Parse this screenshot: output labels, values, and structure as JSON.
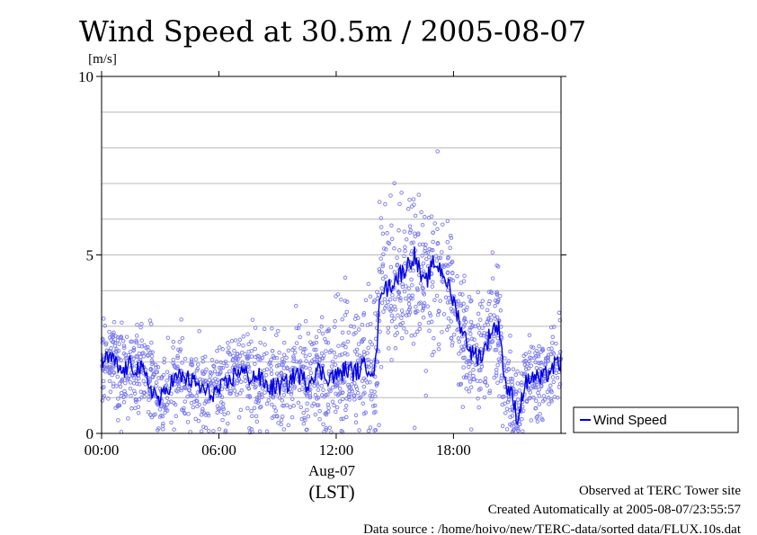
{
  "chart_data": {
    "type": "scatter",
    "title": "Wind Speed at 30.5m / 2005-08-07",
    "ylabel": "[m/s]",
    "xlabel": "(LST)",
    "date_label": "Aug-07",
    "x_ticks": [
      "00:00",
      "06:00",
      "12:00",
      "18:00"
    ],
    "x_tick_hours": [
      0,
      6,
      12,
      18
    ],
    "xlim_hours": [
      0,
      23.5
    ],
    "y_ticks": [
      0,
      5,
      10
    ],
    "y_tick_labels": [
      "0",
      "5",
      "10"
    ],
    "ylim": [
      0,
      10
    ],
    "grid": "horizontal every 1 m/s",
    "legend_position": "right",
    "series": [
      {
        "name": "Wind Speed",
        "kind": "line-with-scatter",
        "color": "#0000e0",
        "scatter_color": "#7a7aee",
        "mean_profile": [
          [
            0.0,
            2.0
          ],
          [
            0.5,
            2.1
          ],
          [
            1.0,
            1.7
          ],
          [
            1.5,
            1.9
          ],
          [
            2.0,
            1.8
          ],
          [
            2.5,
            1.3
          ],
          [
            3.0,
            0.9
          ],
          [
            3.5,
            1.4
          ],
          [
            4.0,
            1.6
          ],
          [
            4.5,
            1.5
          ],
          [
            5.0,
            1.3
          ],
          [
            5.5,
            1.1
          ],
          [
            6.0,
            1.2
          ],
          [
            6.5,
            1.4
          ],
          [
            7.0,
            1.8
          ],
          [
            7.5,
            1.6
          ],
          [
            8.0,
            1.6
          ],
          [
            8.5,
            1.3
          ],
          [
            9.0,
            1.3
          ],
          [
            9.5,
            1.4
          ],
          [
            10.0,
            1.7
          ],
          [
            10.5,
            1.4
          ],
          [
            11.0,
            1.8
          ],
          [
            11.5,
            1.6
          ],
          [
            12.0,
            1.6
          ],
          [
            12.5,
            1.8
          ],
          [
            13.0,
            1.7
          ],
          [
            13.5,
            1.9
          ],
          [
            14.0,
            1.8
          ],
          [
            14.3,
            4.2
          ],
          [
            14.5,
            4.0
          ],
          [
            15.0,
            4.3
          ],
          [
            15.5,
            4.6
          ],
          [
            16.0,
            5.0
          ],
          [
            16.5,
            4.1
          ],
          [
            17.0,
            4.8
          ],
          [
            17.5,
            4.5
          ],
          [
            18.0,
            3.7
          ],
          [
            18.5,
            2.8
          ],
          [
            19.0,
            2.2
          ],
          [
            19.5,
            2.2
          ],
          [
            20.0,
            3.0
          ],
          [
            20.4,
            2.9
          ],
          [
            20.6,
            1.5
          ],
          [
            21.0,
            1.0
          ],
          [
            21.3,
            0.4
          ],
          [
            21.6,
            1.3
          ],
          [
            22.0,
            1.6
          ],
          [
            22.5,
            1.5
          ],
          [
            23.0,
            1.8
          ],
          [
            23.5,
            2.0
          ]
        ],
        "spread_profile": [
          [
            0.0,
            0.6
          ],
          [
            6.0,
            0.6
          ],
          [
            9.0,
            0.7
          ],
          [
            12.0,
            0.9
          ],
          [
            14.0,
            1.0
          ],
          [
            14.3,
            1.1
          ],
          [
            16.0,
            1.2
          ],
          [
            18.0,
            0.9
          ],
          [
            19.5,
            0.8
          ],
          [
            20.5,
            0.7
          ],
          [
            21.5,
            0.5
          ],
          [
            23.5,
            0.6
          ]
        ]
      }
    ]
  },
  "notes": {
    "site": "Observed at TERC Tower site",
    "created": "Created Automatically at 2005-08-07/23:55:57",
    "source": "Data source : /home/hoivo/new/TERC-data/sorted  data/FLUX.10s.dat"
  }
}
